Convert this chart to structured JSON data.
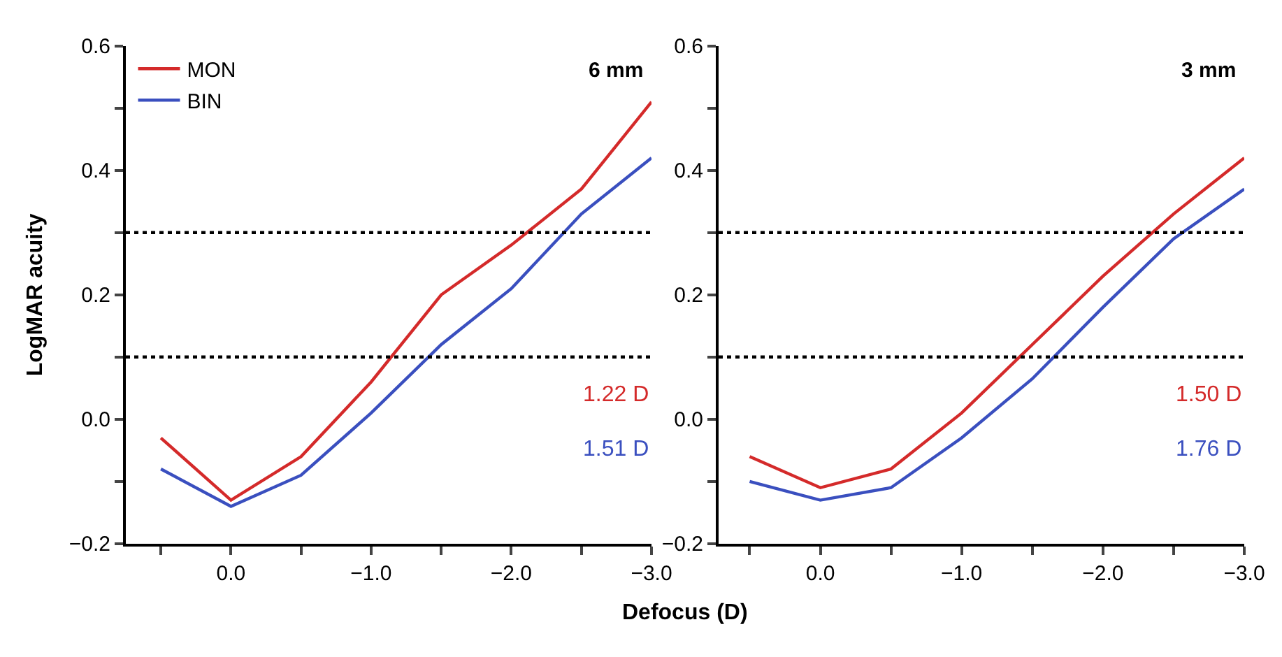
{
  "chart_data": [
    {
      "type": "line",
      "xlabel": "Defocus (D)",
      "ylabel": "LogMAR acuity",
      "x": [
        0.5,
        0.0,
        -0.5,
        -1.0,
        -1.5,
        -2.0,
        -2.5,
        -3.0
      ],
      "series": [
        {
          "name": "MON",
          "color": "#d42a2a",
          "values": [
            -0.03,
            -0.13,
            -0.06,
            0.06,
            0.2,
            0.28,
            0.37,
            0.51
          ]
        },
        {
          "name": "BIN",
          "color": "#3a4fbf",
          "values": [
            -0.08,
            -0.14,
            -0.09,
            0.01,
            0.12,
            0.21,
            0.33,
            0.42
          ]
        }
      ],
      "annotations": [
        "6 mm",
        "1.22 D",
        "1.51 D"
      ],
      "xlim": [
        0.75,
        -3.0
      ],
      "xticks": [
        {
          "value": 0.5,
          "label": null
        },
        {
          "value": 0.0,
          "label": "0.0"
        },
        {
          "value": -0.5,
          "label": null
        },
        {
          "value": -1.0,
          "label": "−1.0"
        },
        {
          "value": -1.5,
          "label": null
        },
        {
          "value": -2.0,
          "label": "−2.0"
        },
        {
          "value": -2.5,
          "label": null
        },
        {
          "value": -3.0,
          "label": "−3.0"
        }
      ],
      "ylim": [
        -0.2,
        0.6
      ],
      "yticks": [
        {
          "value": -0.2,
          "label": "−0.2"
        },
        {
          "value": -0.1,
          "label": null
        },
        {
          "value": 0.0,
          "label": "0.0"
        },
        {
          "value": 0.1,
          "label": null
        },
        {
          "value": 0.2,
          "label": "0.2"
        },
        {
          "value": 0.3,
          "label": null
        },
        {
          "value": 0.4,
          "label": "0.4"
        },
        {
          "value": 0.5,
          "label": null
        },
        {
          "value": 0.6,
          "label": "0.6"
        }
      ],
      "ref_lines": [
        {
          "axis": "y",
          "value": 0.1,
          "color": "#000000",
          "line_style": "dotted"
        },
        {
          "axis": "y",
          "value": 0.3,
          "color": "#000000",
          "line_style": "dotted"
        }
      ],
      "legend": "top left",
      "marker": "none",
      "line_style": "solid"
    },
    {
      "type": "line",
      "x": [
        0.5,
        0.0,
        -0.5,
        -1.0,
        -1.5,
        -2.0,
        -2.5,
        -3.0
      ],
      "series": [
        {
          "color": "#d42a2a",
          "values": [
            -0.06,
            -0.11,
            -0.08,
            0.01,
            0.12,
            0.23,
            0.33,
            0.42
          ]
        },
        {
          "color": "#3a4fbf",
          "values": [
            -0.1,
            -0.13,
            -0.11,
            -0.03,
            0.065,
            0.18,
            0.29,
            0.37
          ]
        }
      ],
      "annotations": [
        "3 mm",
        "1.50 D",
        "1.76 D"
      ],
      "xlim": [
        0.72,
        -3.0
      ],
      "xticks": [
        {
          "value": 0.5,
          "label": null
        },
        {
          "value": 0.0,
          "label": "0.0"
        },
        {
          "value": -0.5,
          "label": null
        },
        {
          "value": -1.0,
          "label": "−1.0"
        },
        {
          "value": -1.5,
          "label": null
        },
        {
          "value": -2.0,
          "label": "−2.0"
        },
        {
          "value": -2.5,
          "label": null
        },
        {
          "value": -3.0,
          "label": "−3.0"
        }
      ],
      "ylim": [
        -0.2,
        0.6
      ],
      "yticks": [
        {
          "value": -0.2,
          "label": "−0.2"
        },
        {
          "value": -0.1,
          "label": null
        },
        {
          "value": 0.0,
          "label": "0.0"
        },
        {
          "value": 0.1,
          "label": null
        },
        {
          "value": 0.2,
          "label": "0.2"
        },
        {
          "value": 0.3,
          "label": null
        },
        {
          "value": 0.4,
          "label": "0.4"
        },
        {
          "value": 0.5,
          "label": null
        },
        {
          "value": 0.6,
          "label": "0.6"
        }
      ],
      "ref_lines": [
        {
          "axis": "y",
          "value": 0.1,
          "color": "#000000",
          "line_style": "dotted"
        },
        {
          "axis": "y",
          "value": 0.3,
          "color": "#000000",
          "line_style": "dotted"
        }
      ],
      "legend": false,
      "marker": "none",
      "line_style": "solid"
    }
  ]
}
